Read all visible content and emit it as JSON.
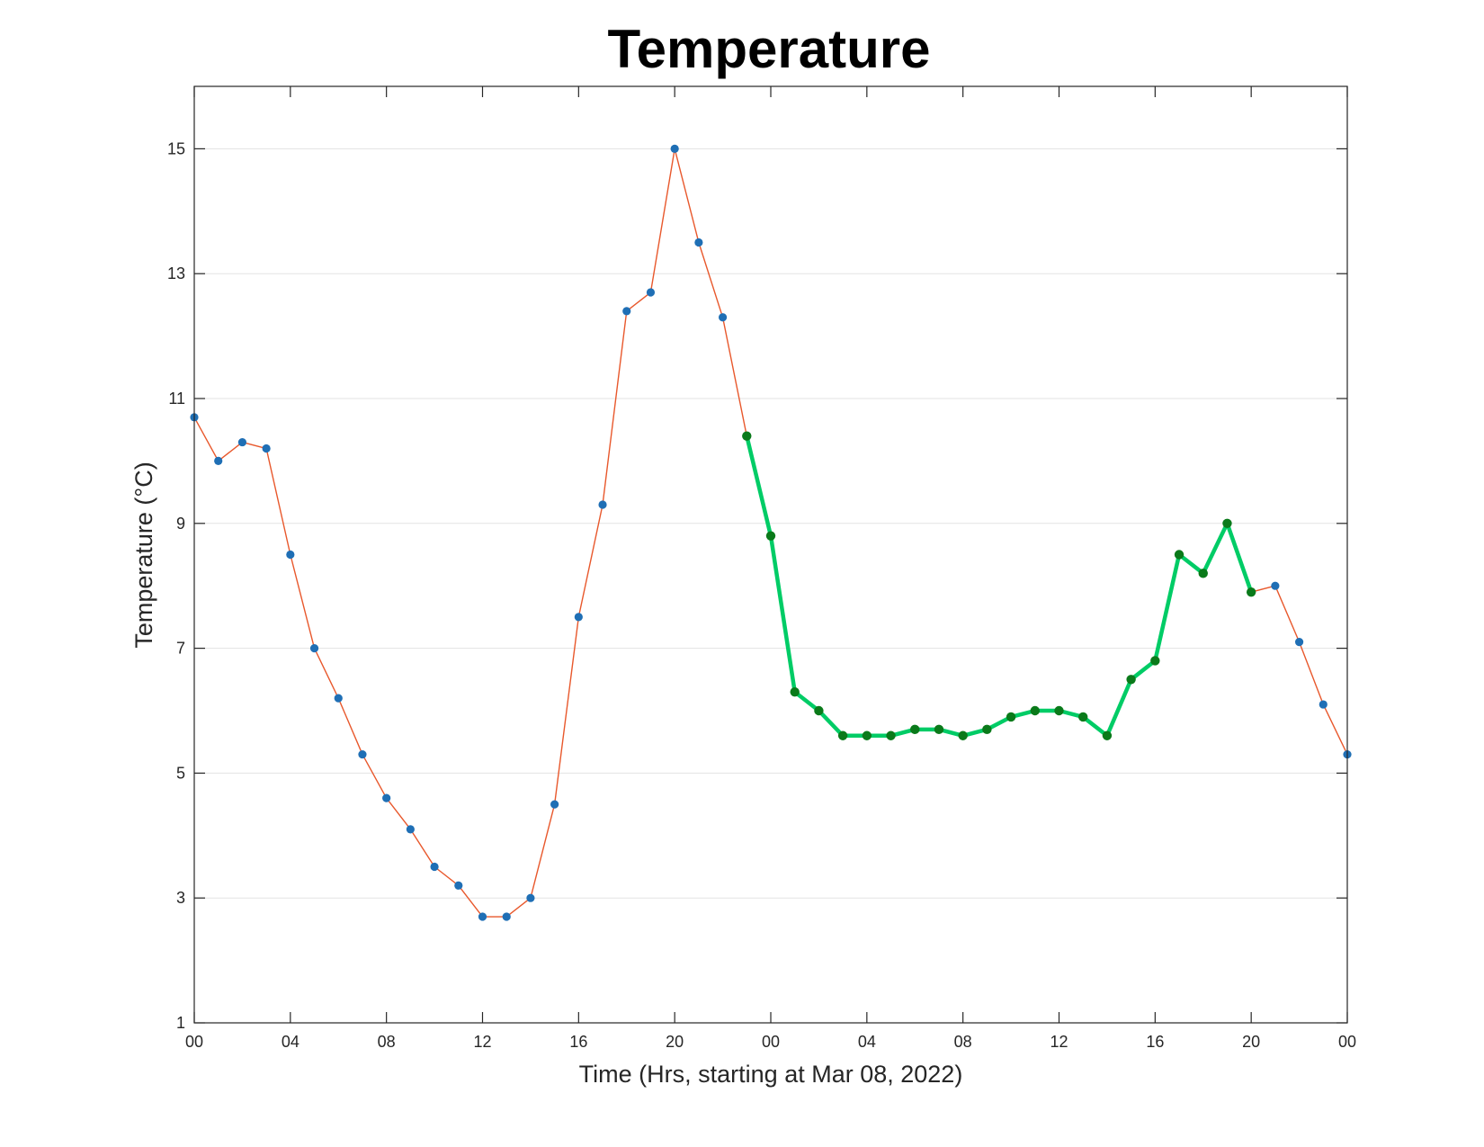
{
  "chart_data": {
    "type": "line",
    "title": "Temperature",
    "xlabel": "Time (Hrs, starting at Mar 08, 2022)",
    "ylabel": "Temperature (°C)",
    "xlim": [
      0,
      48
    ],
    "ylim": [
      1,
      16
    ],
    "xticks": [
      0,
      4,
      8,
      12,
      16,
      20,
      24,
      28,
      32,
      36,
      40,
      44,
      48
    ],
    "xtick_labels": [
      "00",
      "04",
      "08",
      "12",
      "16",
      "20",
      "00",
      "04",
      "08",
      "12",
      "16",
      "20",
      "00"
    ],
    "yticks": [
      1,
      3,
      5,
      7,
      9,
      11,
      13,
      15
    ],
    "ytick_labels": [
      "1",
      "3",
      "5",
      "7",
      "9",
      "11",
      "13",
      "15"
    ],
    "grid": "horizontal",
    "series": [
      {
        "color": "#e8582c",
        "marker_color": "#1f6fb5",
        "x": [
          0,
          1,
          2,
          3,
          4,
          5,
          6,
          7,
          8,
          9,
          10,
          11,
          12,
          13,
          14,
          15,
          16,
          17,
          18,
          19,
          20,
          21,
          22,
          23,
          24,
          25,
          26,
          27,
          28,
          29,
          30,
          31,
          32,
          33,
          34,
          35,
          36,
          37,
          38,
          39,
          40,
          41,
          42,
          43,
          44,
          45,
          46,
          47,
          48
        ],
        "values": [
          10.7,
          10.0,
          10.3,
          10.2,
          8.5,
          7.0,
          6.2,
          5.3,
          4.6,
          4.1,
          3.5,
          3.2,
          2.7,
          2.7,
          3.0,
          4.5,
          7.5,
          9.3,
          12.4,
          12.7,
          15.0,
          13.5,
          12.3,
          10.4,
          8.8,
          6.3,
          6.0,
          5.6,
          5.6,
          5.6,
          5.7,
          5.7,
          5.6,
          5.7,
          5.9,
          6.0,
          6.0,
          5.9,
          5.6,
          6.5,
          6.8,
          8.5,
          8.2,
          9.0,
          7.9,
          8.0,
          7.1,
          6.1,
          5.3
        ]
      },
      {
        "color": "#00cc66",
        "marker_color": "#0a7a1a",
        "x": [
          23,
          24,
          25,
          26,
          27,
          28,
          29,
          30,
          31,
          32,
          33,
          34,
          35,
          36,
          37,
          38,
          39,
          40,
          41,
          42,
          43,
          44
        ],
        "values": [
          10.4,
          8.8,
          6.3,
          6.0,
          5.6,
          5.6,
          5.6,
          5.7,
          5.7,
          5.6,
          5.7,
          5.9,
          6.0,
          6.0,
          5.9,
          5.6,
          6.5,
          6.8,
          8.5,
          8.2,
          9.0,
          7.9
        ]
      }
    ]
  }
}
